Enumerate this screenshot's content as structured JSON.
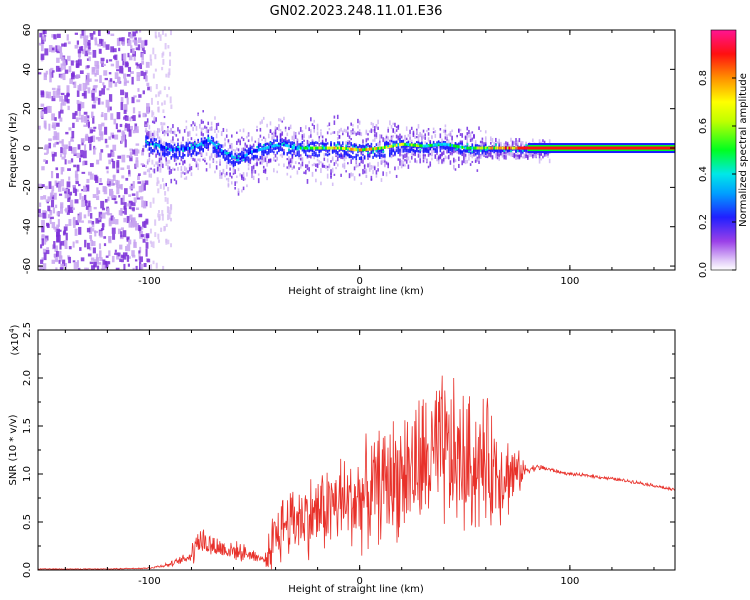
{
  "title": "GN02.2023.248.11.01.E36",
  "chart_data": [
    {
      "type": "heatmap",
      "xlabel": "Height of straight line (km)",
      "ylabel": "Frequency (Hz)",
      "xlim": [
        -153,
        150
      ],
      "ylim": [
        -62,
        60
      ],
      "xticks": [
        -100,
        0,
        100
      ],
      "yticks": [
        -60,
        -40,
        -20,
        0,
        20,
        40,
        60
      ],
      "grid": false,
      "colorbar": {
        "label": "Normalized spectral amplitude",
        "range": [
          0,
          1
        ],
        "ticks": [
          0.0,
          0.2,
          0.4,
          0.6,
          0.8
        ],
        "colormap": [
          "#ffffff",
          "#d8b8f8",
          "#8a2be2",
          "#0000ff",
          "#00bfff",
          "#00e5ff",
          "#00ff00",
          "#c8ff00",
          "#ffff00",
          "#ff8c00",
          "#ff0000",
          "#ff1493"
        ]
      },
      "ridge": {
        "x": [
          -102,
          -95,
          -90,
          -80,
          -72,
          -65,
          -58,
          -52,
          -45,
          -38,
          -30,
          -20,
          -10,
          0,
          10,
          20,
          30,
          40,
          50,
          60,
          70,
          80,
          90,
          100,
          110,
          120,
          130,
          140,
          150
        ],
        "y": [
          3,
          1,
          -1,
          0,
          4,
          -2,
          -6,
          -2,
          0,
          2,
          0,
          0,
          0,
          -1,
          0,
          2,
          1,
          2,
          0,
          0,
          0,
          0,
          0,
          0,
          0,
          0,
          0,
          0,
          0
        ],
        "peak_amplitude": [
          0.35,
          0.35,
          0.38,
          0.4,
          0.45,
          0.4,
          0.35,
          0.38,
          0.4,
          0.45,
          0.5,
          0.75,
          0.85,
          0.9,
          0.85,
          0.7,
          0.6,
          0.55,
          0.7,
          0.85,
          1.0,
          1.0,
          1.0,
          1.0,
          1.0,
          1.0,
          1.0,
          1.0,
          1.0
        ]
      }
    },
    {
      "type": "line",
      "xlabel": "Height of straight line (km)",
      "ylabel": "SNR (10 * v/v)",
      "yscale_label": "(x10",
      "yscale_exp": "4",
      "yscale_close": ")",
      "xlim": [
        -153,
        150
      ],
      "ylim": [
        0,
        2.5
      ],
      "xticks": [
        -100,
        0,
        100
      ],
      "yticks": [
        0.0,
        0.5,
        1.0,
        1.5,
        2.0,
        2.5
      ],
      "color": "#e8312a",
      "grid": false,
      "series": [
        {
          "x": [
            -153,
            -120,
            -100,
            -95,
            -90,
            -85,
            -80,
            -78,
            -75,
            -70,
            -65,
            -60,
            -55,
            -50,
            -45,
            -42,
            -40,
            -35,
            -30,
            -25,
            -20,
            -15,
            -10,
            -5,
            0,
            5,
            10,
            15,
            20,
            25,
            30,
            35,
            40,
            45,
            50,
            55,
            60,
            65,
            70,
            75,
            80,
            85,
            90,
            95,
            100,
            110,
            120,
            130,
            140,
            150
          ],
          "y": [
            0.01,
            0.01,
            0.02,
            0.04,
            0.06,
            0.1,
            0.15,
            0.35,
            0.3,
            0.25,
            0.22,
            0.2,
            0.18,
            0.15,
            0.1,
            0.25,
            0.35,
            0.5,
            0.55,
            0.55,
            0.6,
            0.65,
            0.7,
            0.7,
            0.75,
            0.8,
            0.9,
            0.95,
            1.0,
            1.05,
            1.1,
            1.15,
            1.2,
            1.15,
            1.1,
            1.1,
            1.1,
            1.05,
            1.0,
            1.0,
            1.05,
            1.07,
            1.05,
            1.02,
            1.0,
            0.98,
            0.95,
            0.92,
            0.88,
            0.83
          ],
          "noise_amplitude": [
            0.005,
            0.005,
            0.01,
            0.02,
            0.03,
            0.05,
            0.1,
            0.3,
            0.2,
            0.15,
            0.15,
            0.12,
            0.1,
            0.08,
            0.05,
            0.35,
            0.4,
            0.45,
            0.45,
            0.5,
            0.5,
            0.55,
            0.6,
            0.6,
            0.65,
            0.65,
            0.7,
            0.75,
            0.8,
            0.85,
            0.9,
            0.95,
            1.0,
            0.95,
            0.9,
            0.85,
            0.8,
            0.7,
            0.55,
            0.3,
            0.05,
            0.04,
            0.03,
            0.02,
            0.02,
            0.02,
            0.02,
            0.02,
            0.02,
            0.02
          ]
        }
      ]
    }
  ]
}
